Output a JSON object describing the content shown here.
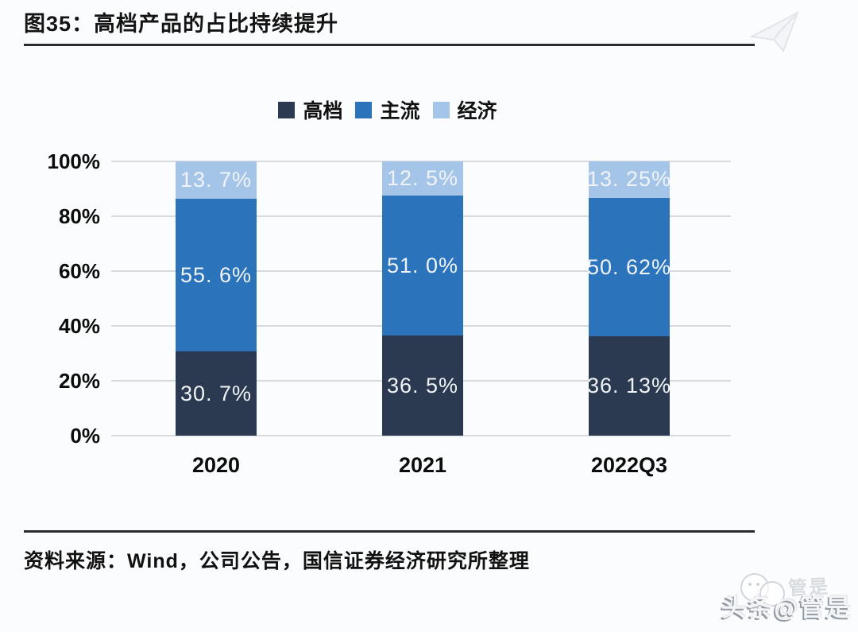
{
  "page": {
    "title": "图35：高档产品的占比持续提升",
    "source_note": "资料来源：Wind，公司公告，国信证券经济研究所整理"
  },
  "watermark": {
    "main": "头条@管是",
    "ghost": "管是"
  },
  "chart_data": {
    "type": "bar",
    "stacked": true,
    "title": "图35：高档产品的占比持续提升",
    "categories": [
      "2020",
      "2021",
      "2022Q3"
    ],
    "series": [
      {
        "name": "高档",
        "color": "#2b3a50",
        "values": [
          30.7,
          36.5,
          36.13
        ],
        "display_labels": [
          "30. 7%",
          "36. 5%",
          "36. 13%"
        ]
      },
      {
        "name": "主流",
        "color": "#2b73ba",
        "values": [
          55.6,
          51.0,
          50.62
        ],
        "display_labels": [
          "55. 6%",
          "51. 0%",
          "50. 62%"
        ]
      },
      {
        "name": "经济",
        "color": "#a5c5e8",
        "values": [
          13.7,
          12.5,
          13.25
        ],
        "display_labels": [
          "13. 7%",
          "12. 5%",
          "13. 25%"
        ]
      }
    ],
    "ylim": [
      0,
      100
    ],
    "y_ticks": [
      "100%",
      "80%",
      "60%",
      "40%",
      "20%",
      "0%"
    ],
    "xlabel": "",
    "ylabel": "",
    "grid": true,
    "legend_position": "top"
  }
}
